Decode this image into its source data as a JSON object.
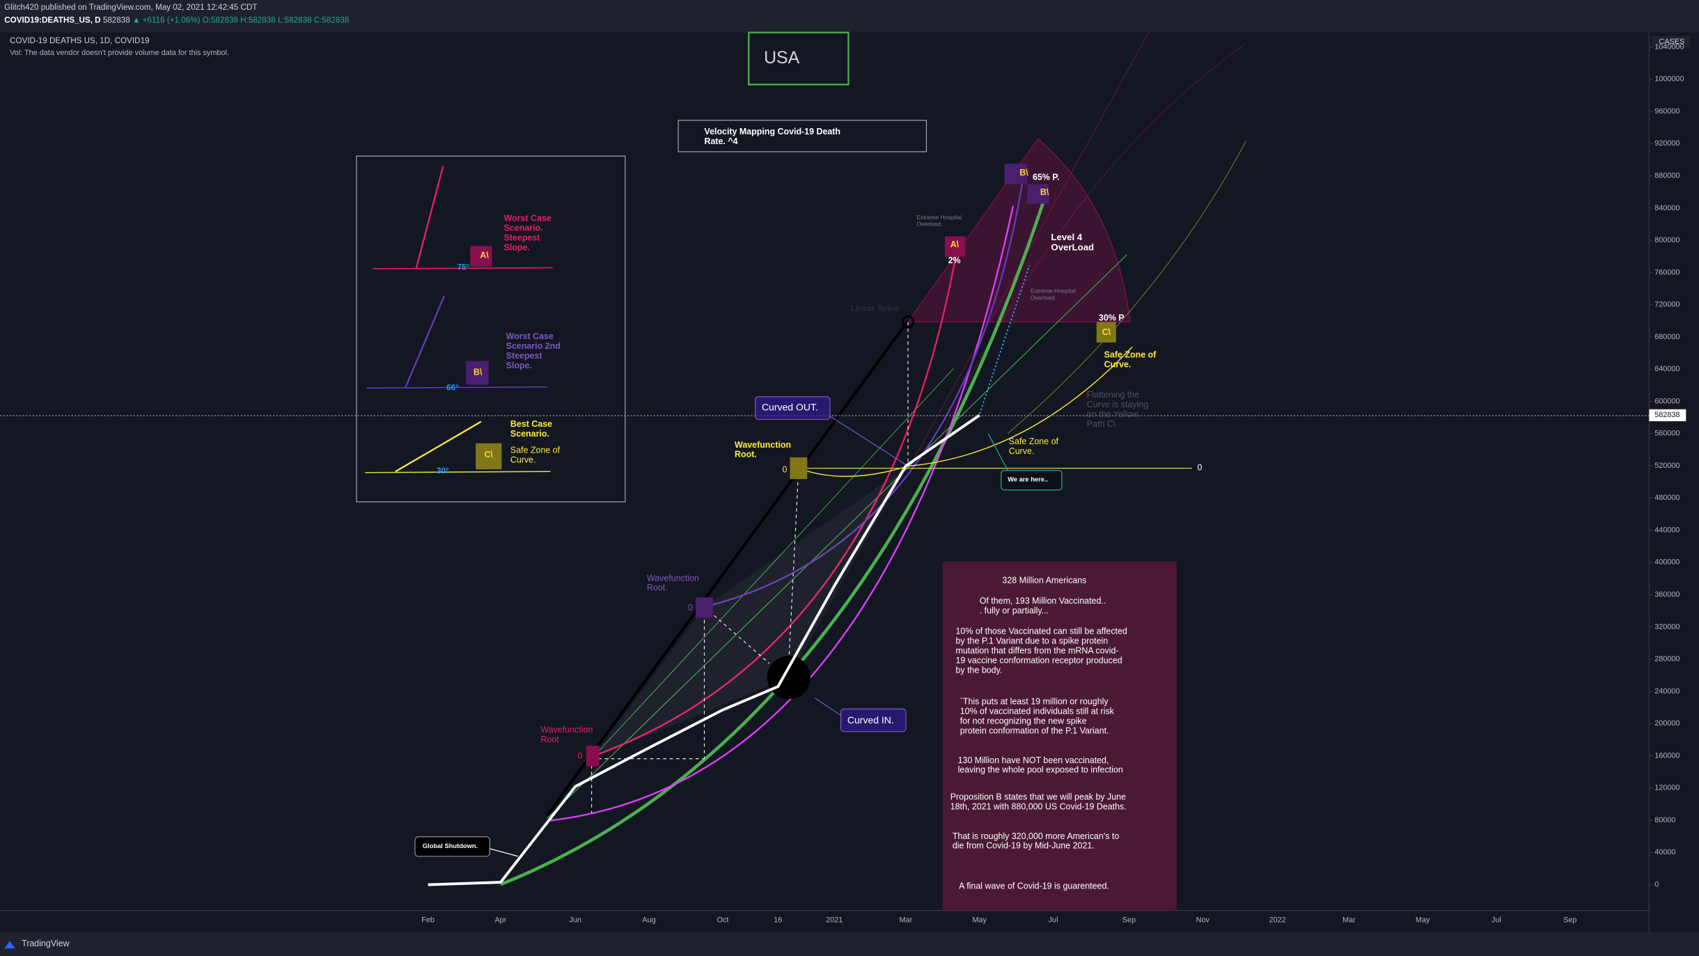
{
  "header": {
    "published": "Glitch420 published on TradingView.com, May 02, 2021 12:42:45 CDT",
    "symbol": "COVID19:DEATHS_US, D",
    "price": "582838",
    "change": "▲ +6116 (+1.06%)",
    "ohlc": "O:582838 H:582838 L:582838 C:582838"
  },
  "chart_data": {
    "type": "line",
    "title": "COVID-19 DEATHS US, 1D, COVID19",
    "subtitle": "Vol: The data vendor doesn't provide volume data for this symbol.",
    "y_axis_label": "CASES",
    "categories": [
      "Feb",
      "Apr",
      "Jun",
      "Aug",
      "Oct",
      "16",
      "2021",
      "Mar",
      "May",
      "Jul",
      "Sep",
      "Nov",
      "2022",
      "Mar",
      "May",
      "Jul",
      "Sep"
    ],
    "series": [
      {
        "color": "#ffffff",
        "values": [
          0,
          3000,
          122000,
          170000,
          217000,
          246000,
          371000,
          520000,
          582838,
          null,
          null,
          null,
          null,
          null,
          null,
          null,
          null
        ]
      }
    ],
    "ylim": [
      -32000,
      1058000
    ],
    "yticks": [
      0,
      40000,
      80000,
      120000,
      160000,
      200000,
      240000,
      280000,
      320000,
      360000,
      400000,
      440000,
      480000,
      520000,
      560000,
      600000,
      640000,
      680000,
      720000,
      760000,
      800000,
      840000,
      880000,
      920000,
      960000,
      1000000,
      1040000
    ],
    "grid": false,
    "annotations": [
      {
        "text": [
          "USA"
        ]
      },
      {
        "text": [
          "Velocity Mapping Covid-19 Death",
          "Rate. ^4"
        ]
      },
      {
        "text": [
          "Worst Case",
          "Scenario.",
          "Steepest",
          "Slope."
        ]
      },
      {
        "text": [
          "A\\"
        ]
      },
      {
        "text": [
          "75°"
        ]
      },
      {
        "text": [
          "Worst Case",
          "Scenario 2nd",
          "Steepest",
          "Slope."
        ]
      },
      {
        "text": [
          "B\\"
        ]
      },
      {
        "text": [
          "66°"
        ]
      },
      {
        "text": [
          "Best Case",
          "Scenario."
        ]
      },
      {
        "text": [
          "C\\"
        ]
      },
      {
        "text": [
          "Safe Zone of",
          "Curve."
        ]
      },
      {
        "text": [
          "30°"
        ]
      },
      {
        "text": [
          "Extreme Hospital",
          "Overload."
        ]
      },
      {
        "text": [
          "B\\"
        ]
      },
      {
        "text": [
          "65% P."
        ]
      },
      {
        "text": [
          "B\\"
        ]
      },
      {
        "text": [
          "A\\"
        ]
      },
      {
        "text": [
          "2%"
        ]
      },
      {
        "text": [
          "Level 4",
          "OverLoad"
        ]
      },
      {
        "text": [
          "Extreme Hospital",
          "Overload."
        ]
      },
      {
        "text": [
          "Linear Spine"
        ]
      },
      {
        "text": [
          "30% P"
        ]
      },
      {
        "text": [
          "C\\"
        ]
      },
      {
        "text": [
          "Safe Zone of",
          "Curve."
        ]
      },
      {
        "text": [
          "Flattening the",
          "Curve is staying",
          "on the Yellow",
          "Path C\\"
        ]
      },
      {
        "text": [
          "Curved OUT."
        ]
      },
      {
        "text": [
          "Wavefunction",
          "Root."
        ]
      },
      {
        "text": [
          "0"
        ]
      },
      {
        "text": [
          "Safe Zone of",
          "Curve."
        ]
      },
      {
        "text": [
          "We are here.."
        ]
      },
      {
        "text": [
          "0"
        ]
      },
      {
        "text": [
          "Wavefunction",
          "Root."
        ]
      },
      {
        "text": [
          "0"
        ]
      },
      {
        "text": [
          "Curved IN."
        ]
      },
      {
        "text": [
          "Wavefunction",
          "Root"
        ]
      },
      {
        "text": [
          "0"
        ]
      },
      {
        "text": [
          "Global Shutdown."
        ]
      },
      {
        "text": [
          "328 Million Americans"
        ]
      },
      {
        "text": [
          "Of them, 193 Million Vaccinated..",
          ". fully or partially..."
        ]
      },
      {
        "text": [
          "10% of those Vaccinated can still be affected",
          "by the P.1 Variant due to a spike protein",
          "mutation that differs from the mRNA covid-",
          "19 vaccine conformation receptor produced",
          "by the body."
        ]
      },
      {
        "text": [
          "`This puts at least 19 million or roughly",
          "10% of vaccinated individuals still at risk",
          "for not recognizing the new spike",
          "protein conformation of the P.1 Variant."
        ]
      },
      {
        "text": [
          "130 Million have NOT been vaccinated,",
          "leaving the whole pool exposed to infection"
        ]
      },
      {
        "text": [
          "Proposition B states that we will peak by June",
          "18th, 2021 with 880,000 US Covid-19 Deaths."
        ]
      },
      {
        "text": [
          "That is roughly 320,000 more American's to",
          "die from Covid-19 by Mid-June 2021."
        ]
      },
      {
        "text": [
          "A final wave of Covid-19 is guarenteed."
        ]
      }
    ]
  },
  "footer": {
    "brand": "TradingView"
  }
}
